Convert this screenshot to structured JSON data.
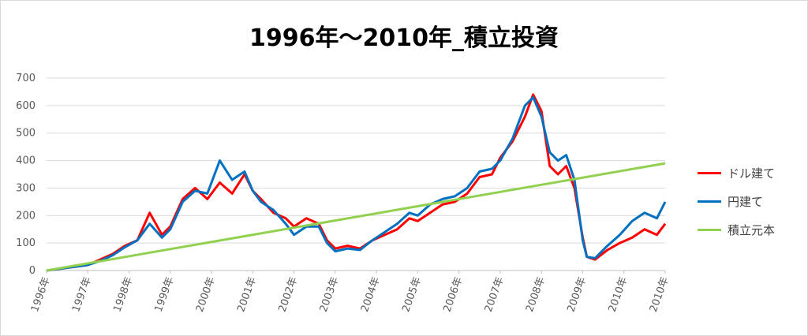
{
  "chart_data": {
    "type": "line",
    "title": "1996年～2010年_積立投資",
    "xlabel": "",
    "ylabel": "",
    "ylim": [
      0,
      700
    ],
    "yticks": [
      "0",
      "100",
      "200",
      "300",
      "400",
      "500",
      "600",
      "700"
    ],
    "categories": [
      "1996年",
      "1997年",
      "1998年",
      "1999年",
      "2000年",
      "2001年",
      "2002年",
      "2003年",
      "2004年",
      "2005年",
      "2006年",
      "2007年",
      "2008年",
      "2009年",
      "2010年",
      "2010年"
    ],
    "grid": true,
    "legend_position": "right",
    "series": [
      {
        "name": "ドル建て",
        "color": "#ff0000",
        "x": [
          1996.0,
          1996.5,
          1997.0,
          1997.3,
          1997.6,
          1997.9,
          1998.2,
          1998.5,
          1998.8,
          1999.0,
          1999.3,
          1999.6,
          1999.9,
          2000.2,
          2000.5,
          2000.8,
          2001.0,
          2001.2,
          2001.5,
          2001.8,
          2002.0,
          2002.3,
          2002.6,
          2002.8,
          2003.0,
          2003.3,
          2003.6,
          2003.9,
          2004.2,
          2004.5,
          2004.8,
          2005.0,
          2005.3,
          2005.6,
          2005.9,
          2006.2,
          2006.5,
          2006.8,
          2007.0,
          2007.3,
          2007.6,
          2007.8,
          2008.0,
          2008.2,
          2008.4,
          2008.6,
          2008.8,
          2009.0,
          2009.1,
          2009.3,
          2009.6,
          2009.9,
          2010.2,
          2010.5,
          2010.8,
          2011.0
        ],
        "values": [
          0,
          10,
          20,
          40,
          60,
          90,
          110,
          210,
          130,
          160,
          260,
          300,
          260,
          320,
          280,
          350,
          290,
          260,
          210,
          190,
          160,
          190,
          170,
          110,
          80,
          90,
          80,
          110,
          130,
          150,
          190,
          180,
          210,
          240,
          250,
          280,
          340,
          350,
          410,
          470,
          560,
          640,
          580,
          380,
          350,
          380,
          300,
          120,
          50,
          40,
          75,
          100,
          120,
          150,
          130,
          170
        ]
      },
      {
        "name": "円建て",
        "color": "#0070c0",
        "x": [
          1996.0,
          1996.5,
          1997.0,
          1997.3,
          1997.6,
          1997.9,
          1998.2,
          1998.5,
          1998.8,
          1999.0,
          1999.3,
          1999.6,
          1999.9,
          2000.2,
          2000.5,
          2000.8,
          2001.0,
          2001.2,
          2001.5,
          2001.8,
          2002.0,
          2002.3,
          2002.6,
          2002.8,
          2003.0,
          2003.3,
          2003.6,
          2003.9,
          2004.2,
          2004.5,
          2004.8,
          2005.0,
          2005.3,
          2005.6,
          2005.9,
          2006.2,
          2006.5,
          2006.8,
          2007.0,
          2007.3,
          2007.6,
          2007.8,
          2008.0,
          2008.2,
          2008.4,
          2008.6,
          2008.8,
          2009.0,
          2009.1,
          2009.3,
          2009.6,
          2009.9,
          2010.2,
          2010.5,
          2010.8,
          2011.0
        ],
        "values": [
          0,
          10,
          20,
          35,
          55,
          85,
          110,
          170,
          120,
          150,
          250,
          290,
          280,
          400,
          330,
          360,
          290,
          250,
          220,
          170,
          130,
          160,
          160,
          100,
          70,
          80,
          75,
          110,
          140,
          170,
          210,
          200,
          240,
          260,
          270,
          300,
          360,
          370,
          400,
          480,
          600,
          630,
          560,
          430,
          400,
          420,
          330,
          110,
          50,
          45,
          90,
          130,
          180,
          210,
          190,
          250
        ]
      },
      {
        "name": "積立元本",
        "color": "#92d050",
        "x": [
          1996.0,
          2011.0
        ],
        "values": [
          0,
          390
        ]
      }
    ]
  }
}
